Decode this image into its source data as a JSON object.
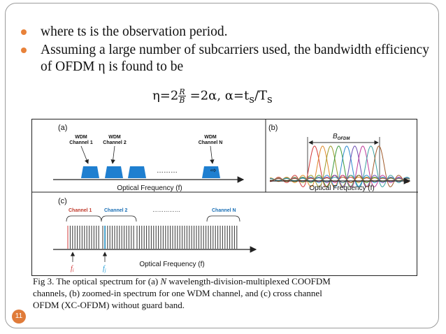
{
  "bullets": [
    "where ts is the observation period.",
    "Assuming a large number of subcarriers used, the bandwidth efficiency of OFDM η is found to be"
  ],
  "formula": {
    "lhs": "η=2",
    "frac_num": "R",
    "frac_den": "B",
    "rhs": "=2α, α=t",
    "sub1": "s",
    "slash": "/T",
    "sub2": "s"
  },
  "figure": {
    "panel_a": {
      "label": "(a)",
      "channels": [
        "WDM\nChannel 1",
        "WDM\nChannel 2",
        "WDM\nChannel N"
      ],
      "dots": "………",
      "axis_label": "Optical Frequency (f)"
    },
    "panel_b": {
      "label": "(b)",
      "bw_label": "B",
      "bw_sub": "OFDM",
      "axis_label": "Optical Frequency (f)"
    },
    "panel_c": {
      "label": "(c)",
      "channel_labels": [
        "Channel 1",
        "Channel 2",
        "Channel N"
      ],
      "dots": "……………",
      "marker_1": "f",
      "marker_1_sub": "i",
      "marker_2": "f",
      "marker_2_sub": "j",
      "axis_label": "Optical Frequency (f)"
    },
    "colors": {
      "wdm_block": "#1f7fd0",
      "channel_label_red": "#c0392b",
      "channel_label_blue": "#1a6fb5",
      "marker_red": "#d23a3a",
      "marker_blue": "#1a9ad6"
    }
  },
  "caption": {
    "line1_prefix": "Fig 3. The optical spectrum for (a) ",
    "line1_italic": "N",
    "line1_suffix": " wavelength-division-multiplexed COOFDM",
    "line2": "channels, (b) zoomed-in spectrum for one WDM channel, and (c) cross channel",
    "line3": "OFDM (XC-OFDM) without guard band."
  },
  "page_number": "11"
}
